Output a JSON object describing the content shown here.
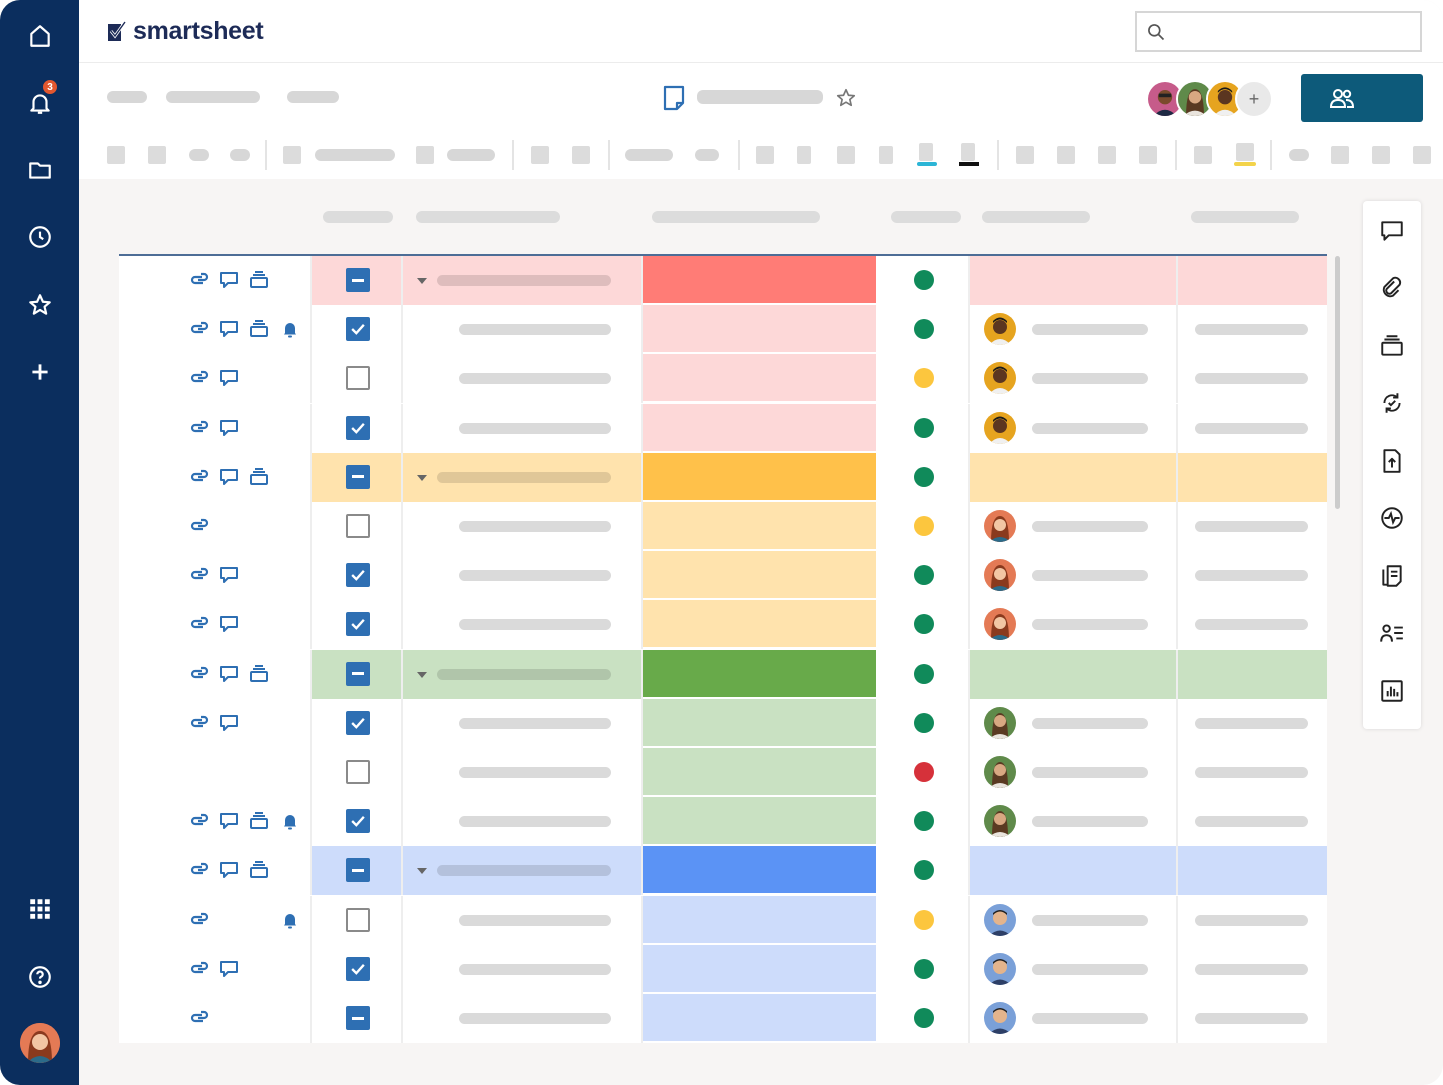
{
  "app": {
    "logo_text": "smartsheet"
  },
  "leftnav": {
    "notification_count": "3",
    "items": [
      {
        "name": "home-icon"
      },
      {
        "name": "bell-icon"
      },
      {
        "name": "folder-icon"
      },
      {
        "name": "clock-icon"
      },
      {
        "name": "star-icon"
      },
      {
        "name": "plus-icon"
      },
      {
        "name": "app-grid-icon"
      },
      {
        "name": "help-icon"
      }
    ]
  },
  "sheet": {
    "collaborator_add_label": "+",
    "colors": {
      "red_parent": "#ff7c76",
      "red_light": "#fdd8d8",
      "red_row": "#fdd8d8",
      "orange_parent": "#ffc14a",
      "orange_light": "#ffe3ad",
      "orange_row": "#ffe3ad",
      "green_parent": "#68aa4a",
      "green_light": "#c9e1c2",
      "green_row": "#c9e1c2",
      "blue_parent": "#5b93f5",
      "blue_light": "#cddcfb",
      "blue_row": "#cddcfb",
      "status_green": "#108a5a",
      "status_yellow": "#fcc63e",
      "status_red": "#d6313a",
      "checkbox_blue": "#2e6fb3",
      "link_icon_blue": "#2e6fb3"
    },
    "groups": [
      {
        "color": "red",
        "rows": [
          {
            "type": "parent",
            "icons": [
              "link",
              "comment",
              "attachment"
            ],
            "check": "partial",
            "status": "green"
          },
          {
            "type": "child",
            "icons": [
              "link",
              "comment",
              "attachment",
              "reminder"
            ],
            "check": "checked",
            "status": "green",
            "avatar": "person-a"
          },
          {
            "type": "child",
            "icons": [
              "link",
              "comment"
            ],
            "check": "empty",
            "status": "yellow",
            "avatar": "person-a"
          },
          {
            "type": "child",
            "icons": [
              "link",
              "comment"
            ],
            "check": "checked",
            "status": "green",
            "avatar": "person-a"
          }
        ]
      },
      {
        "color": "orange",
        "rows": [
          {
            "type": "parent",
            "icons": [
              "link",
              "comment",
              "attachment"
            ],
            "check": "partial",
            "status": "green"
          },
          {
            "type": "child",
            "icons": [
              "link"
            ],
            "check": "empty",
            "status": "yellow",
            "avatar": "person-b"
          },
          {
            "type": "child",
            "icons": [
              "link",
              "comment"
            ],
            "check": "checked",
            "status": "green",
            "avatar": "person-b"
          },
          {
            "type": "child",
            "icons": [
              "link",
              "comment"
            ],
            "check": "checked",
            "status": "green",
            "avatar": "person-b"
          }
        ]
      },
      {
        "color": "green",
        "rows": [
          {
            "type": "parent",
            "icons": [
              "link",
              "comment",
              "attachment"
            ],
            "check": "partial",
            "status": "green"
          },
          {
            "type": "child",
            "icons": [
              "link",
              "comment"
            ],
            "check": "checked",
            "status": "green",
            "avatar": "person-c"
          },
          {
            "type": "child",
            "icons": [],
            "check": "empty",
            "status": "red",
            "avatar": "person-c"
          },
          {
            "type": "child",
            "icons": [
              "link",
              "comment",
              "attachment",
              "reminder"
            ],
            "check": "checked",
            "status": "green",
            "avatar": "person-c"
          }
        ]
      },
      {
        "color": "blue",
        "rows": [
          {
            "type": "parent",
            "icons": [
              "link",
              "comment",
              "attachment"
            ],
            "check": "partial",
            "status": "green"
          },
          {
            "type": "child",
            "icons": [
              "link",
              "",
              "",
              "reminder"
            ],
            "check": "empty",
            "status": "yellow",
            "avatar": "person-d"
          },
          {
            "type": "child",
            "icons": [
              "link",
              "comment"
            ],
            "check": "checked",
            "status": "green",
            "avatar": "person-d"
          },
          {
            "type": "child",
            "icons": [
              "link"
            ],
            "check": "partial",
            "status": "green",
            "avatar": "person-d"
          }
        ]
      }
    ]
  },
  "rightpanel": {
    "items": [
      "comment-icon",
      "attachment-link-icon",
      "proofing-icon",
      "update-requests-icon",
      "publish-icon",
      "activity-log-icon",
      "summary-icon",
      "contact-card-icon",
      "dashboard-chart-icon"
    ]
  }
}
